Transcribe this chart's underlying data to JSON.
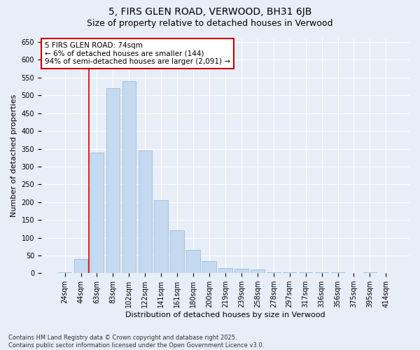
{
  "title": "5, FIRS GLEN ROAD, VERWOOD, BH31 6JB",
  "subtitle": "Size of property relative to detached houses in Verwood",
  "xlabel": "Distribution of detached houses by size in Verwood",
  "ylabel": "Number of detached properties",
  "categories": [
    "24sqm",
    "44sqm",
    "63sqm",
    "83sqm",
    "102sqm",
    "122sqm",
    "141sqm",
    "161sqm",
    "180sqm",
    "200sqm",
    "219sqm",
    "239sqm",
    "258sqm",
    "278sqm",
    "297sqm",
    "317sqm",
    "336sqm",
    "356sqm",
    "375sqm",
    "395sqm",
    "414sqm"
  ],
  "values": [
    3,
    40,
    340,
    520,
    540,
    345,
    205,
    120,
    65,
    35,
    15,
    12,
    10,
    3,
    3,
    2,
    2,
    2,
    0,
    2,
    0
  ],
  "bar_color": "#c5d9f0",
  "bar_edge_color": "#8ab4d8",
  "bar_width": 0.85,
  "vline_x": 1.5,
  "vline_color": "#cc0000",
  "annotation_text": "5 FIRS GLEN ROAD: 74sqm\n← 6% of detached houses are smaller (144)\n94% of semi-detached houses are larger (2,091) →",
  "annotation_box_color": "#ffffff",
  "annotation_box_edge": "#cc0000",
  "ylim": [
    0,
    660
  ],
  "yticks": [
    0,
    50,
    100,
    150,
    200,
    250,
    300,
    350,
    400,
    450,
    500,
    550,
    600,
    650
  ],
  "footnote": "Contains HM Land Registry data © Crown copyright and database right 2025.\nContains public sector information licensed under the Open Government Licence v3.0.",
  "bg_color": "#e8eef7",
  "plot_bg_color": "#e8eef7",
  "title_fontsize": 10,
  "subtitle_fontsize": 9,
  "tick_fontsize": 7,
  "label_fontsize": 8,
  "footnote_fontsize": 6,
  "annotation_fontsize": 7.5
}
